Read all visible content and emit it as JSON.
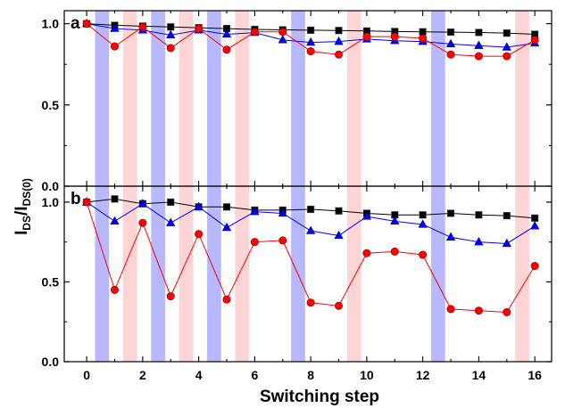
{
  "chart_data": [
    {
      "type": "line",
      "panel_label": "a",
      "x": [
        0,
        1,
        2,
        3,
        4,
        5,
        6,
        7,
        8,
        9,
        10,
        11,
        12,
        13,
        14,
        15,
        16
      ],
      "xlim": [
        -0.8,
        16.6
      ],
      "ylim": [
        0,
        1.08
      ],
      "yticks": [
        "0.0",
        "0.5",
        "1.0"
      ],
      "shaded_bands": [
        {
          "from": 0.3,
          "to": 0.8,
          "color": "#b8b8ff"
        },
        {
          "from": 1.3,
          "to": 1.8,
          "color": "#ffd4d4"
        },
        {
          "from": 2.3,
          "to": 2.8,
          "color": "#b8b8ff"
        },
        {
          "from": 3.3,
          "to": 3.8,
          "color": "#ffd4d4"
        },
        {
          "from": 4.3,
          "to": 4.8,
          "color": "#b8b8ff"
        },
        {
          "from": 5.3,
          "to": 5.8,
          "color": "#ffd4d4"
        },
        {
          "from": 7.3,
          "to": 7.8,
          "color": "#b8b8ff"
        },
        {
          "from": 9.3,
          "to": 9.8,
          "color": "#ffd4d4"
        },
        {
          "from": 12.3,
          "to": 12.8,
          "color": "#b8b8ff"
        },
        {
          "from": 15.3,
          "to": 15.8,
          "color": "#ffd4d4"
        }
      ],
      "series": [
        {
          "color": "#000000",
          "marker": "square",
          "values": [
            1.0,
            0.99,
            0.985,
            0.98,
            0.975,
            0.97,
            0.965,
            0.962,
            0.96,
            0.958,
            0.955,
            0.952,
            0.95,
            0.948,
            0.946,
            0.942,
            0.935
          ]
        },
        {
          "color": "#0000ff",
          "marker": "triangle",
          "values": [
            1.0,
            0.97,
            0.96,
            0.93,
            0.96,
            0.935,
            0.945,
            0.9,
            0.885,
            0.89,
            0.905,
            0.895,
            0.89,
            0.875,
            0.865,
            0.855,
            0.88
          ]
        },
        {
          "color": "#ff0000",
          "marker": "circle",
          "values": [
            1.0,
            0.86,
            0.98,
            0.85,
            0.97,
            0.84,
            0.95,
            0.95,
            0.83,
            0.81,
            0.92,
            0.92,
            0.91,
            0.81,
            0.8,
            0.8,
            0.9
          ]
        }
      ]
    },
    {
      "type": "line",
      "panel_label": "b",
      "x": [
        0,
        1,
        2,
        3,
        4,
        5,
        6,
        7,
        8,
        9,
        10,
        11,
        12,
        13,
        14,
        15,
        16
      ],
      "xlim": [
        -0.8,
        16.6
      ],
      "ylim": [
        0,
        1.1
      ],
      "yticks": [
        "0.0",
        "0.5",
        "1.0"
      ],
      "xticks": [
        "0",
        "2",
        "4",
        "6",
        "8",
        "10",
        "12",
        "14",
        "16"
      ],
      "shaded_bands": [
        {
          "from": 0.3,
          "to": 0.8,
          "color": "#b8b8ff"
        },
        {
          "from": 1.3,
          "to": 1.8,
          "color": "#ffd4d4"
        },
        {
          "from": 2.3,
          "to": 2.8,
          "color": "#b8b8ff"
        },
        {
          "from": 3.3,
          "to": 3.8,
          "color": "#ffd4d4"
        },
        {
          "from": 4.3,
          "to": 4.8,
          "color": "#b8b8ff"
        },
        {
          "from": 5.3,
          "to": 5.8,
          "color": "#ffd4d4"
        },
        {
          "from": 7.3,
          "to": 7.8,
          "color": "#b8b8ff"
        },
        {
          "from": 9.3,
          "to": 9.8,
          "color": "#ffd4d4"
        },
        {
          "from": 12.3,
          "to": 12.8,
          "color": "#b8b8ff"
        },
        {
          "from": 15.3,
          "to": 15.8,
          "color": "#ffd4d4"
        }
      ],
      "series": [
        {
          "color": "#000000",
          "marker": "square",
          "values": [
            1.0,
            1.02,
            0.99,
            1.0,
            0.97,
            0.97,
            0.95,
            0.95,
            0.955,
            0.945,
            0.93,
            0.92,
            0.92,
            0.93,
            0.92,
            0.915,
            0.9
          ]
        },
        {
          "color": "#0000ff",
          "marker": "triangle",
          "values": [
            1.0,
            0.88,
            0.99,
            0.87,
            0.97,
            0.84,
            0.94,
            0.93,
            0.82,
            0.79,
            0.91,
            0.88,
            0.86,
            0.78,
            0.75,
            0.74,
            0.85
          ]
        },
        {
          "color": "#ff0000",
          "marker": "circle",
          "values": [
            1.0,
            0.45,
            0.87,
            0.41,
            0.8,
            0.39,
            0.75,
            0.76,
            0.37,
            0.35,
            0.68,
            0.69,
            0.67,
            0.33,
            0.32,
            0.31,
            0.6
          ]
        }
      ]
    }
  ],
  "ylabel_main": "I",
  "ylabel_sub1": "DS",
  "ylabel_mid": "/I",
  "ylabel_sub2": "DS(0)",
  "xlabel": "Switching step"
}
